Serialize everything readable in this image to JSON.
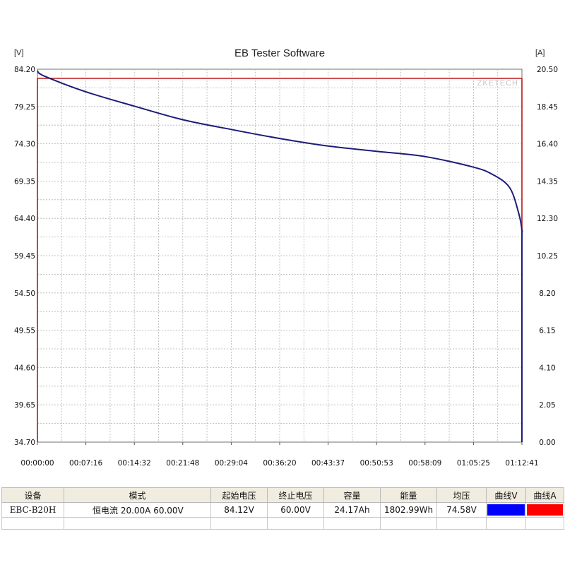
{
  "chart_data": {
    "type": "line",
    "title": "EB Tester Software",
    "watermark": "ZKETECH",
    "left_unit": "[V]",
    "right_unit": "[A]",
    "y_left_ticks": [
      "84.20",
      "79.25",
      "74.30",
      "69.35",
      "64.40",
      "59.45",
      "54.50",
      "49.55",
      "44.60",
      "39.65",
      "34.70"
    ],
    "y_right_ticks": [
      "20.50",
      "18.45",
      "16.40",
      "14.35",
      "12.30",
      "10.25",
      "8.20",
      "6.15",
      "4.10",
      "2.05",
      "0.00"
    ],
    "x_ticks": [
      "00:00:00",
      "00:07:16",
      "00:14:32",
      "00:21:48",
      "00:29:04",
      "00:36:20",
      "00:43:37",
      "00:50:53",
      "00:58:09",
      "01:05:25",
      "01:12:41"
    ],
    "ylim_left": [
      34.7,
      84.2
    ],
    "ylim_right": [
      0,
      20.5
    ],
    "xlim_seconds": [
      0,
      4361
    ],
    "grid": true,
    "series": [
      {
        "axis": "left",
        "color": "#1c1c7a",
        "x_seconds": [
          0,
          60,
          436,
          872,
          1308,
          1745,
          2181,
          2617,
          3053,
          3489,
          3925,
          4100,
          4250,
          4330,
          4361,
          4362,
          4365
        ],
        "values": [
          84.0,
          83.3,
          81.2,
          79.3,
          77.5,
          76.2,
          75.0,
          74.0,
          73.3,
          72.6,
          71.2,
          70.2,
          68.5,
          65.2,
          62.8,
          60.0,
          34.7
        ]
      },
      {
        "axis": "right",
        "color": "#c03030",
        "x_seconds": [
          0,
          0,
          4361,
          4361
        ],
        "values": [
          0,
          20.0,
          20.0,
          0
        ]
      }
    ]
  },
  "table": {
    "headers": [
      "设备",
      "模式",
      "起始电压",
      "终止电压",
      "容量",
      "能量",
      "均压",
      "曲线V",
      "曲线A"
    ],
    "row": {
      "device": "EBC-B20H",
      "mode": "恒电流  20.00A  60.00V",
      "start_voltage": "84.12V",
      "end_voltage": "60.00V",
      "capacity": "24.17Ah",
      "energy": "1802.99Wh",
      "avg_voltage": "74.58V",
      "curve_v_color": "#0000ff",
      "curve_a_color": "#ff0000"
    }
  }
}
